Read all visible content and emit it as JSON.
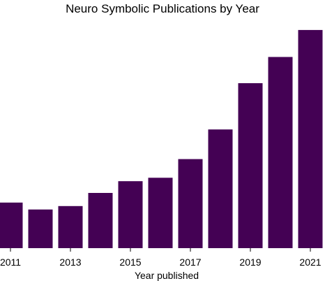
{
  "chart_data": {
    "type": "bar",
    "title": "Neuro Symbolic Publications by Year",
    "xlabel": "Year published",
    "ylabel": "",
    "categories": [
      "2011",
      "2012",
      "2013",
      "2014",
      "2015",
      "2016",
      "2017",
      "2018",
      "2019",
      "2020",
      "2021"
    ],
    "values": [
      66,
      56,
      61,
      80,
      97,
      102,
      129,
      172,
      239,
      277,
      316
    ],
    "tick_labels": [
      "2011",
      "2013",
      "2015",
      "2017",
      "2019",
      "2021"
    ],
    "ylim": [
      0,
      320
    ],
    "grid": false,
    "bar_color": "#440154"
  }
}
